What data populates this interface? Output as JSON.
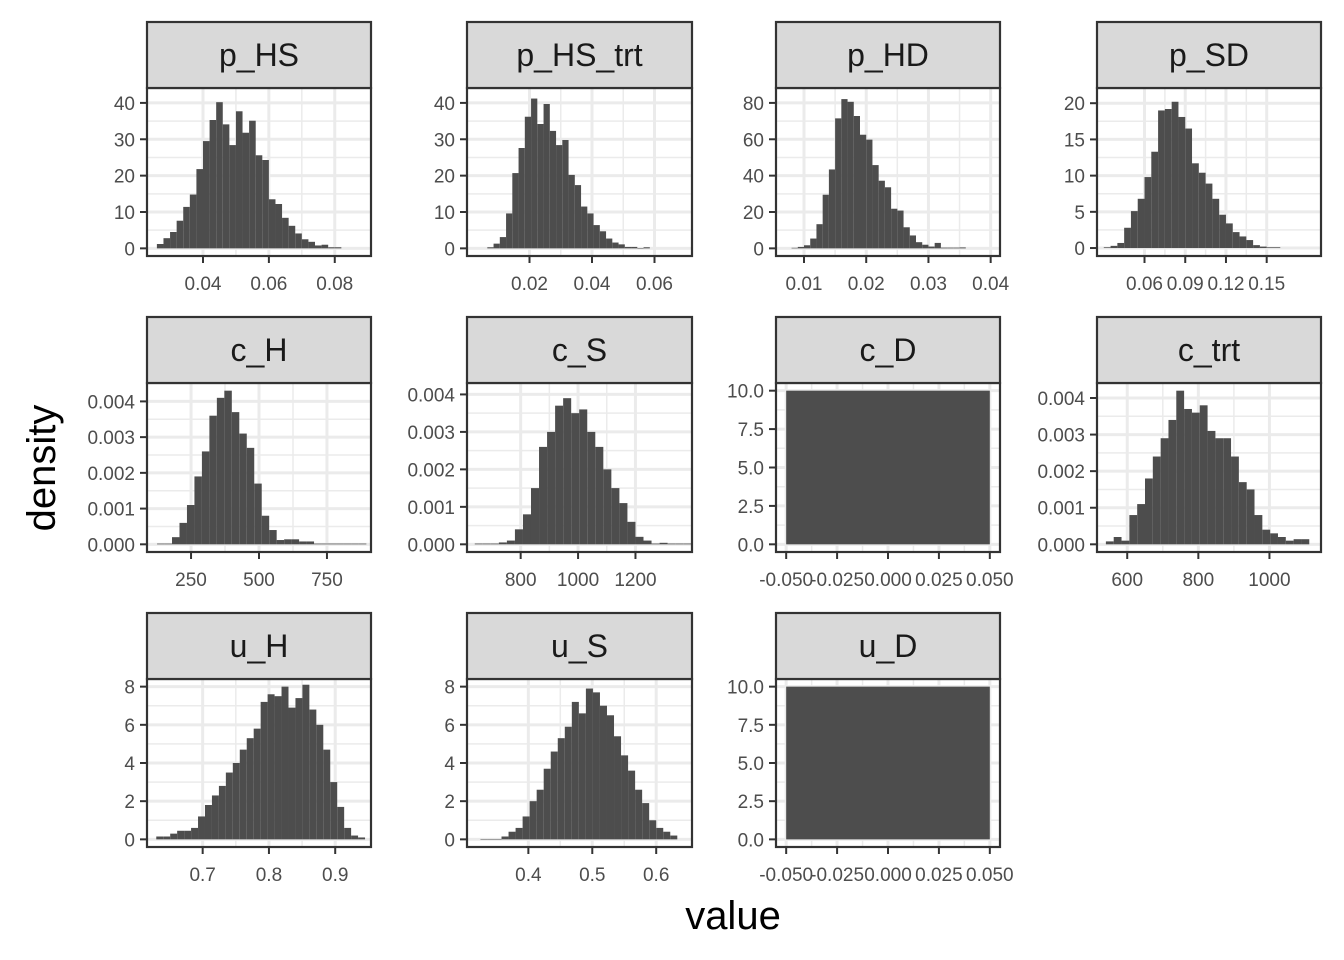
{
  "figure": {
    "xlabel": "value",
    "ylabel": "density"
  },
  "chart_data": {
    "type": "histogram",
    "xlabel": "value",
    "ylabel": "density",
    "grid": true,
    "bar_color": "#4d4d4d",
    "panel_background": "#ffffff",
    "strip_background": "#d9d9d9",
    "panels": [
      {
        "name": "p_HS",
        "xlim": [
          0.023,
          0.091
        ],
        "ylim": [
          -2.1,
          44.1
        ],
        "xticks": [
          0.04,
          0.06,
          0.08
        ],
        "xtick_labels": [
          "0.04",
          "0.06",
          "0.08"
        ],
        "yticks": [
          0,
          10,
          20,
          30,
          40
        ],
        "ytick_labels": [
          "0",
          "10",
          "20",
          "30",
          "40"
        ],
        "bin_start": 0.026,
        "bin_width": 0.002,
        "values": [
          1.2,
          2.8,
          4.5,
          7.6,
          11.4,
          14.8,
          21.8,
          29.5,
          35.3,
          40.2,
          34.1,
          28.4,
          37.7,
          31.8,
          35.1,
          25.6,
          24.3,
          13.5,
          12.2,
          8.4,
          6.2,
          4.1,
          2.5,
          1.8,
          0.8,
          1.0,
          0.3,
          0.3
        ]
      },
      {
        "name": "p_HS_trt",
        "xlim": [
          0.0,
          0.072
        ],
        "ylim": [
          -2.1,
          44.1
        ],
        "xticks": [
          0.02,
          0.04,
          0.06
        ],
        "xtick_labels": [
          "0.02",
          "0.04",
          "0.06"
        ],
        "yticks": [
          0,
          10,
          20,
          30,
          40
        ],
        "ytick_labels": [
          "0",
          "10",
          "20",
          "30",
          "40"
        ],
        "bin_start": 0.0065,
        "bin_width": 0.002,
        "values": [
          0.3,
          1.3,
          3.1,
          9.6,
          20.7,
          27.6,
          36.2,
          41.2,
          34.2,
          39.7,
          32.3,
          28.4,
          29.8,
          20.2,
          17.4,
          11.5,
          9.6,
          6.4,
          4.7,
          2.7,
          1.6,
          1.1,
          0.4,
          0.4,
          0.1,
          0.3
        ]
      },
      {
        "name": "p_HD",
        "xlim": [
          0.0055,
          0.0415
        ],
        "ylim": [
          -4.2,
          88.2
        ],
        "xticks": [
          0.01,
          0.02,
          0.03,
          0.04
        ],
        "xtick_labels": [
          "0.01",
          "0.02",
          "0.03",
          "0.04"
        ],
        "yticks": [
          0,
          20,
          40,
          60,
          80
        ],
        "ytick_labels": [
          "0",
          "20",
          "40",
          "60",
          "80"
        ],
        "bin_start": 0.008,
        "bin_width": 0.001,
        "values": [
          0.3,
          0.8,
          1.7,
          5.4,
          13.3,
          29.5,
          43.4,
          71.5,
          82.1,
          80.6,
          72.8,
          62.5,
          59.8,
          45.8,
          37.2,
          33.6,
          21.8,
          20.8,
          11.6,
          7.1,
          3.4,
          2.0,
          1.0,
          3.0,
          0.4,
          0.4,
          0.4,
          0.5
        ]
      },
      {
        "name": "p_SD",
        "xlim": [
          0.025,
          0.19
        ],
        "ylim": [
          -1.1,
          22.1
        ],
        "xticks": [
          0.06,
          0.09,
          0.12,
          0.15
        ],
        "xtick_labels": [
          "0.06",
          "0.09",
          "0.12",
          "0.15"
        ],
        "yticks": [
          0,
          5,
          10,
          15,
          20
        ],
        "ytick_labels": [
          "0",
          "5",
          "10",
          "15",
          "20"
        ],
        "bin_start": 0.03,
        "bin_width": 0.005,
        "values": [
          0.1,
          0.3,
          0.7,
          2.8,
          5.1,
          6.8,
          9.8,
          13.3,
          19.0,
          19.2,
          20.2,
          18.1,
          16.5,
          11.7,
          10.4,
          8.9,
          6.8,
          4.6,
          3.4,
          2.2,
          1.6,
          1.1,
          0.4,
          0.2,
          0.1,
          0.1
        ]
      },
      {
        "name": "c_H",
        "xlim": [
          88,
          912
        ],
        "ylim": [
          -0.000215,
          0.004515
        ],
        "xticks": [
          250,
          500,
          750
        ],
        "xtick_labels": [
          "250",
          "500",
          "750"
        ],
        "yticks": [
          0,
          0.001,
          0.002,
          0.003,
          0.004
        ],
        "ytick_labels": [
          "0.000",
          "0.001",
          "0.002",
          "0.003",
          "0.004"
        ],
        "bin_start": 125,
        "bin_width": 27.5,
        "values": [
          2e-05,
          2e-05,
          0.0002,
          0.0006,
          0.0011,
          0.0019,
          0.0026,
          0.0036,
          0.0041,
          0.0043,
          0.0037,
          0.0031,
          0.0027,
          0.0017,
          0.0008,
          0.0004,
          0.00012,
          0.00014,
          0.00014,
          8e-05,
          8e-05,
          2e-05,
          2e-05,
          2e-05,
          2e-05,
          2e-05,
          2e-05,
          2e-05
        ]
      },
      {
        "name": "c_S",
        "xlim": [
          613,
          1397
        ],
        "ylim": [
          -0.000205,
          0.004305
        ],
        "xticks": [
          800,
          1000,
          1200
        ],
        "xtick_labels": [
          "800",
          "1000",
          "1200"
        ],
        "yticks": [
          0,
          0.001,
          0.002,
          0.003,
          0.004
        ],
        "ytick_labels": [
          "0.000",
          "0.001",
          "0.002",
          "0.003",
          "0.004"
        ],
        "bin_start": 640,
        "bin_width": 28,
        "values": [
          2e-05,
          2e-05,
          2e-05,
          5e-05,
          0.0001,
          0.0004,
          0.0008,
          0.0015,
          0.0026,
          0.003,
          0.0037,
          0.0039,
          0.0035,
          0.0036,
          0.003,
          0.0026,
          0.002,
          0.0015,
          0.0011,
          0.0006,
          0.0002,
          0.0001,
          2e-05,
          4e-05,
          2e-05,
          2e-05,
          2e-05
        ]
      },
      {
        "name": "c_D",
        "xlim": [
          -0.055,
          0.055
        ],
        "ylim": [
          -0.5,
          10.5
        ],
        "xticks": [
          -0.05,
          -0.025,
          0,
          0.025,
          0.05
        ],
        "xtick_labels": [
          "-0.050",
          "-0.025",
          "0.000",
          "0.025",
          "0.050"
        ],
        "yticks": [
          0,
          2.5,
          5,
          7.5,
          10
        ],
        "ytick_labels": [
          "0.0",
          "2.5",
          "5.0",
          "7.5",
          "10.0"
        ],
        "bin_start": -0.05,
        "bin_width": 0.1,
        "values": [
          10
        ]
      },
      {
        "name": "c_trt",
        "xlim": [
          515,
          1145
        ],
        "ylim": [
          -0.00021,
          0.00441
        ],
        "xticks": [
          600,
          800,
          1000
        ],
        "xtick_labels": [
          "600",
          "800",
          "1000"
        ],
        "yticks": [
          0,
          0.001,
          0.002,
          0.003,
          0.004
        ],
        "ytick_labels": [
          "0.000",
          "0.001",
          "0.002",
          "0.003",
          "0.004"
        ],
        "bin_start": 540,
        "bin_width": 22,
        "values": [
          8e-05,
          0.0002,
          0.0001,
          0.0008,
          0.0011,
          0.0018,
          0.0024,
          0.0029,
          0.0034,
          0.0042,
          0.0037,
          0.0036,
          0.0038,
          0.0031,
          0.0029,
          0.0029,
          0.0024,
          0.0017,
          0.0015,
          0.0008,
          0.0004,
          0.0003,
          0.0002,
          0.0001,
          0.00014,
          0.00014
        ]
      },
      {
        "name": "u_H",
        "xlim": [
          0.616,
          0.954
        ],
        "ylim": [
          -0.4,
          8.4
        ],
        "xticks": [
          0.7,
          0.8,
          0.9
        ],
        "xtick_labels": [
          "0.7",
          "0.8",
          "0.9"
        ],
        "yticks": [
          0,
          2,
          4,
          6,
          8
        ],
        "ytick_labels": [
          "0",
          "2",
          "4",
          "6",
          "8"
        ],
        "bin_start": 0.63,
        "bin_width": 0.0105,
        "values": [
          0.15,
          0.15,
          0.3,
          0.45,
          0.45,
          0.6,
          1.2,
          1.8,
          2.3,
          2.8,
          3.5,
          4.0,
          4.7,
          5.3,
          5.8,
          7.2,
          7.6,
          7.5,
          8.0,
          6.9,
          7.4,
          8.1,
          6.8,
          6.0,
          4.7,
          3.0,
          1.7,
          0.6,
          0.2,
          0.1
        ]
      },
      {
        "name": "u_S",
        "xlim": [
          0.304,
          0.656
        ],
        "ylim": [
          -0.4,
          8.4
        ],
        "xticks": [
          0.4,
          0.5,
          0.6
        ],
        "xtick_labels": [
          "0.4",
          "0.5",
          "0.6"
        ],
        "yticks": [
          0,
          2,
          4,
          6,
          8
        ],
        "ytick_labels": [
          "0",
          "2",
          "4",
          "6",
          "8"
        ],
        "bin_start": 0.325,
        "bin_width": 0.011,
        "values": [
          0.02,
          0.02,
          0.02,
          0.15,
          0.4,
          0.6,
          1.2,
          2.0,
          2.6,
          3.7,
          4.6,
          5.3,
          5.9,
          7.2,
          6.6,
          7.9,
          7.7,
          7.0,
          6.5,
          5.4,
          4.4,
          3.6,
          2.6,
          1.9,
          1.0,
          0.6,
          0.4,
          0.2
        ]
      },
      {
        "name": "u_D",
        "xlim": [
          -0.055,
          0.055
        ],
        "ylim": [
          -0.5,
          10.5
        ],
        "xticks": [
          -0.05,
          -0.025,
          0,
          0.025,
          0.05
        ],
        "xtick_labels": [
          "-0.050",
          "-0.025",
          "0.000",
          "0.025",
          "0.050"
        ],
        "yticks": [
          0,
          2.5,
          5,
          7.5,
          10
        ],
        "ytick_labels": [
          "0.0",
          "2.5",
          "5.0",
          "7.5",
          "10.0"
        ],
        "bin_start": -0.05,
        "bin_width": 0.1,
        "values": [
          10
        ]
      }
    ]
  }
}
